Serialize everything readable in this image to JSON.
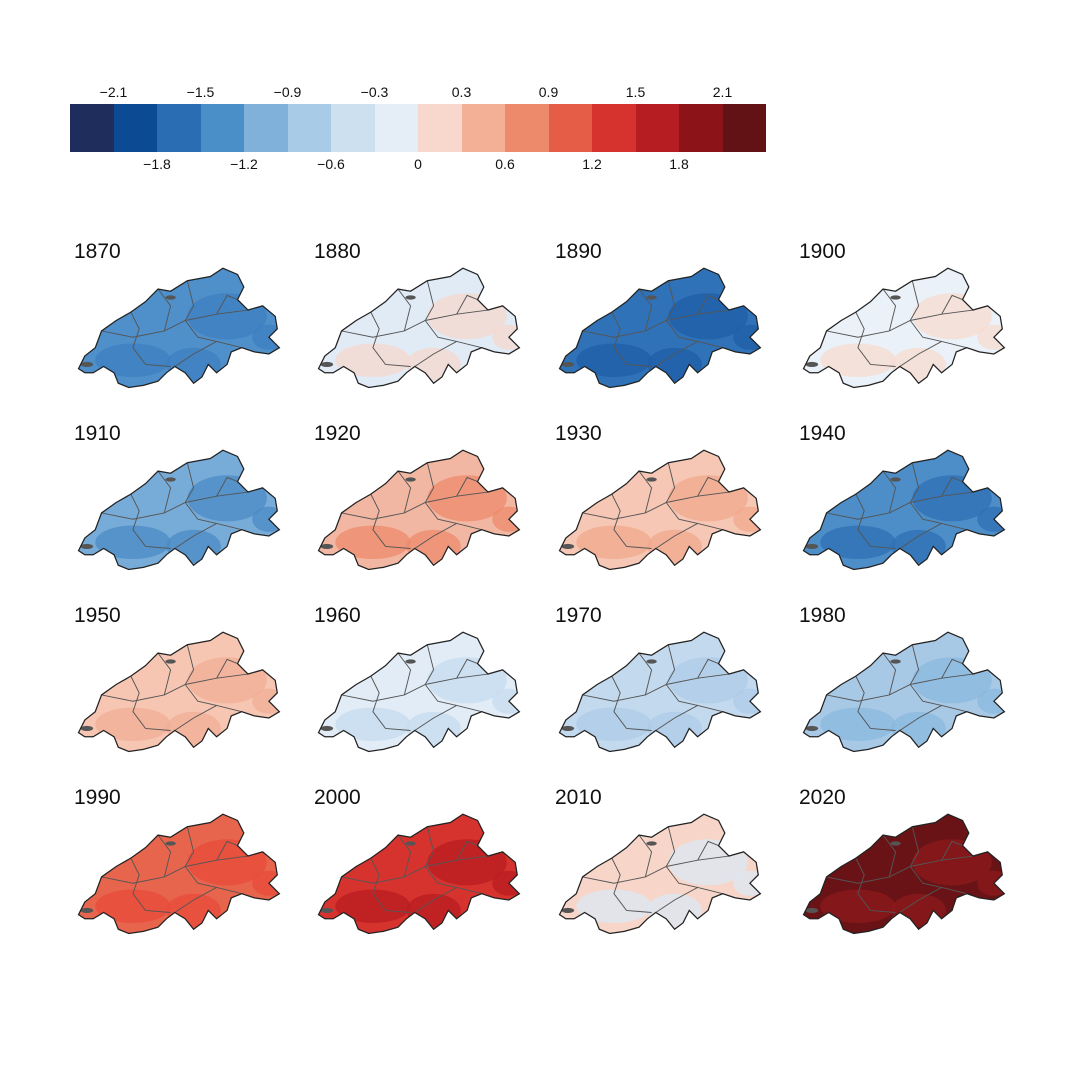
{
  "legend": {
    "top_ticks": [
      "−2.1",
      "−1.5",
      "−0.9",
      "−0.3",
      "0.3",
      "0.9",
      "1.5",
      "2.1"
    ],
    "bottom_ticks": [
      "−1.8",
      "−1.2",
      "−0.6",
      "0",
      "0.6",
      "1.2",
      "1.8"
    ],
    "colors": [
      "#1f2d5c",
      "#0d4a94",
      "#2b6db3",
      "#4a8fc8",
      "#7fb1da",
      "#a8cbe7",
      "#cde0f0",
      "#e5eef7",
      "#f8d8cc",
      "#f4b097",
      "#ed8a6c",
      "#e65d47",
      "#d7332e",
      "#b51d22",
      "#8c1317",
      "#621214"
    ]
  },
  "maps": [
    {
      "year": "1870",
      "fill": "#4f8fca",
      "accent": "#3c7fc0"
    },
    {
      "year": "1880",
      "fill": "#e0ebf6",
      "accent": "#f6d8ce"
    },
    {
      "year": "1890",
      "fill": "#2f72b8",
      "accent": "#1f5fa8"
    },
    {
      "year": "1900",
      "fill": "#eaf1f8",
      "accent": "#f7dbd0"
    },
    {
      "year": "1910",
      "fill": "#78acd8",
      "accent": "#4a8bc6"
    },
    {
      "year": "1920",
      "fill": "#f2b7a2",
      "accent": "#ec8a6c"
    },
    {
      "year": "1930",
      "fill": "#f5c7b4",
      "accent": "#f0a88d"
    },
    {
      "year": "1940",
      "fill": "#4d8dc8",
      "accent": "#2f70b5"
    },
    {
      "year": "1950",
      "fill": "#f6c6b3",
      "accent": "#f1ae95"
    },
    {
      "year": "1960",
      "fill": "#e2ecf6",
      "accent": "#c6dcef"
    },
    {
      "year": "1970",
      "fill": "#c2d9ee",
      "accent": "#aecbe7"
    },
    {
      "year": "1980",
      "fill": "#a8c9e6",
      "accent": "#8ab8df"
    },
    {
      "year": "1990",
      "fill": "#e8654d",
      "accent": "#ea4b3b"
    },
    {
      "year": "2000",
      "fill": "#d7332e",
      "accent": "#b81d22"
    },
    {
      "year": "2010",
      "fill": "#f7d6c9",
      "accent": "#dbe8f4"
    },
    {
      "year": "2020",
      "fill": "#6a1316",
      "accent": "#8c1a1b"
    }
  ]
}
